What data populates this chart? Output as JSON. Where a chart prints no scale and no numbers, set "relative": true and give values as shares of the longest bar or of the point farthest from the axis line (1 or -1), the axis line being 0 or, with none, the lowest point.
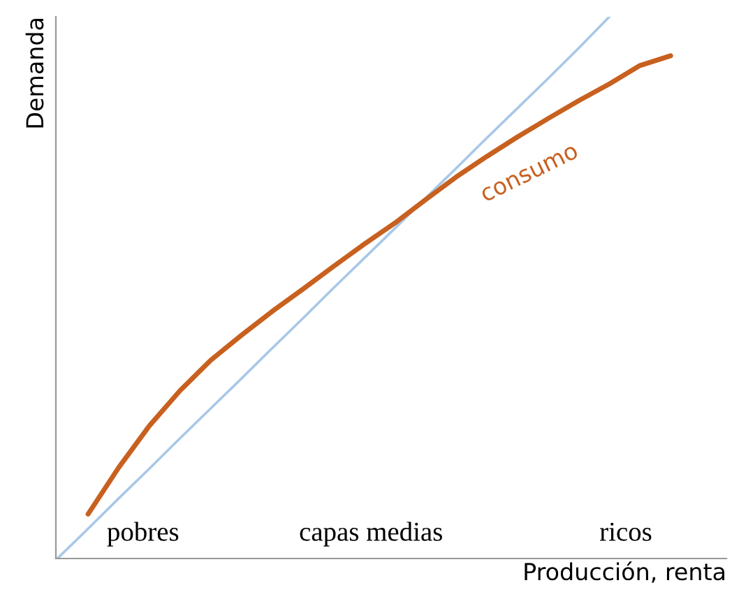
{
  "chart_data": {
    "type": "line",
    "relative": true,
    "xlabel": "Producción, renta",
    "ylabel": "Demanda",
    "categories": [
      null,
      null,
      null,
      null,
      null,
      null,
      null,
      null,
      null,
      null,
      null,
      null,
      null,
      null,
      null,
      null,
      null,
      null,
      null,
      null,
      null
    ],
    "series": [
      {
        "color": "#a9c8e8",
        "values": [
          0,
          0.055,
          0.111,
          0.166,
          0.222,
          0.277,
          0.332,
          0.388,
          0.443,
          0.499,
          0.554,
          0.609,
          0.665,
          0.72,
          0.776,
          0.831,
          0.886,
          0.942,
          1,
          null,
          null
        ]
      },
      {
        "name": "consumo",
        "color": "#c8601f",
        "values": [
          null,
          0.082,
          0.168,
          0.245,
          0.31,
          0.366,
          0.412,
          0.456,
          0.497,
          0.539,
          0.58,
          0.619,
          0.662,
          0.704,
          0.742,
          0.778,
          0.812,
          0.845,
          0.876,
          0.91,
          0.928
        ]
      }
    ],
    "annotations": [
      "pobres",
      "capas medias",
      "ricos"
    ],
    "legend": false
  }
}
